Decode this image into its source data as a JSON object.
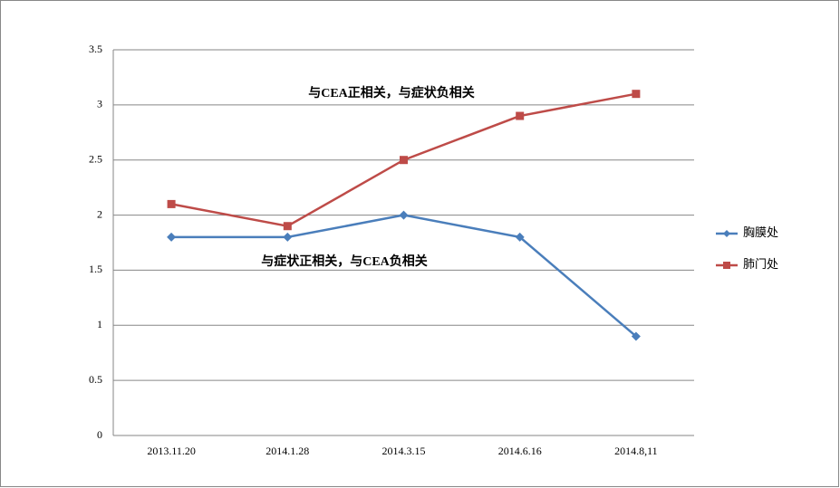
{
  "chart_data": {
    "type": "line",
    "categories": [
      "2013.11.20",
      "2014.1.28",
      "2014.3.15",
      "2014.6.16",
      "2014.8,11"
    ],
    "series": [
      {
        "name": "胸膜处",
        "color": "#4a7ebb",
        "marker": "diamond",
        "values": [
          1.8,
          1.8,
          2,
          1.8,
          0.9
        ]
      },
      {
        "name": "肺门处",
        "color": "#be4b48",
        "marker": "square",
        "values": [
          2.1,
          1.9,
          2.5,
          2.9,
          3.1
        ]
      }
    ],
    "annotations": [
      "与CEA正相关，与症状负相关",
      "与症状正相关，与CEA负相关"
    ],
    "ylim": [
      0,
      3.5
    ],
    "yticks": [
      0,
      0.5,
      1,
      1.5,
      2,
      2.5,
      3,
      3.5
    ],
    "grid": true,
    "legend": "right"
  }
}
